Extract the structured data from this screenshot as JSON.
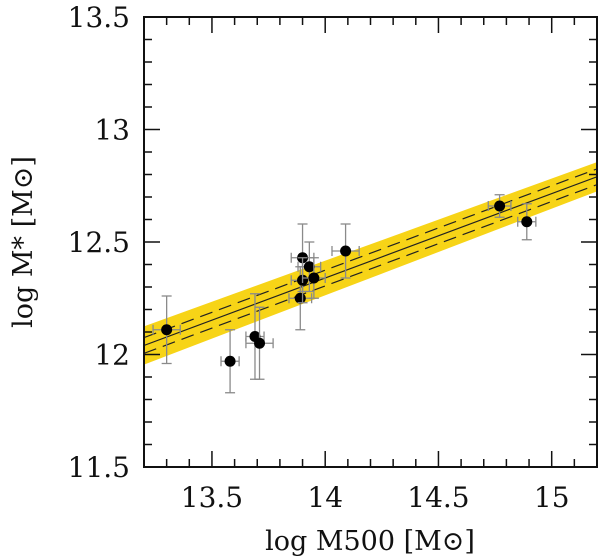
{
  "chart_data": {
    "type": "scatter",
    "xlabel": "log M500 [M⊙]",
    "ylabel": "log M* [M⊙]",
    "xlim": [
      13.2,
      15.2
    ],
    "ylim": [
      11.5,
      13.5
    ],
    "x_ticks": [
      13.5,
      14,
      14.5,
      15
    ],
    "x_tick_labels": [
      "13.5",
      "14",
      "14.5",
      "15"
    ],
    "y_ticks": [
      11.5,
      12,
      12.5,
      13,
      13.5
    ],
    "y_tick_labels": [
      "11.5",
      "12",
      "12.5",
      "13",
      "13.5"
    ],
    "fit": {
      "slope": 0.375,
      "intercept_at_13_2": 12.04,
      "band_halfwidth_low": 0.085,
      "band_halfwidth_high": 0.065,
      "dash_offset": 0.035,
      "band_color": "#f7d417"
    },
    "points": [
      {
        "x": 13.3,
        "y": 12.11,
        "xerr": 0.06,
        "yerr": 0.15
      },
      {
        "x": 13.58,
        "y": 11.97,
        "xerr": 0.04,
        "yerr": 0.14
      },
      {
        "x": 13.69,
        "y": 12.08,
        "xerr": 0.04,
        "yerr": 0.19
      },
      {
        "x": 13.71,
        "y": 12.05,
        "xerr": 0.06,
        "yerr": 0.16
      },
      {
        "x": 13.89,
        "y": 12.25,
        "xerr": 0.05,
        "yerr": 0.14
      },
      {
        "x": 13.9,
        "y": 12.43,
        "xerr": 0.05,
        "yerr": 0.15
      },
      {
        "x": 13.9,
        "y": 12.33,
        "xerr": 0.05,
        "yerr": 0.1
      },
      {
        "x": 13.93,
        "y": 12.39,
        "xerr": 0.05,
        "yerr": 0.11
      },
      {
        "x": 13.95,
        "y": 12.34,
        "xerr": 0.05,
        "yerr": 0.09
      },
      {
        "x": 14.09,
        "y": 12.46,
        "xerr": 0.06,
        "yerr": 0.12
      },
      {
        "x": 14.77,
        "y": 12.66,
        "xerr": 0.05,
        "yerr": 0.05
      },
      {
        "x": 14.89,
        "y": 12.59,
        "xerr": 0.04,
        "yerr": 0.08
      }
    ]
  }
}
